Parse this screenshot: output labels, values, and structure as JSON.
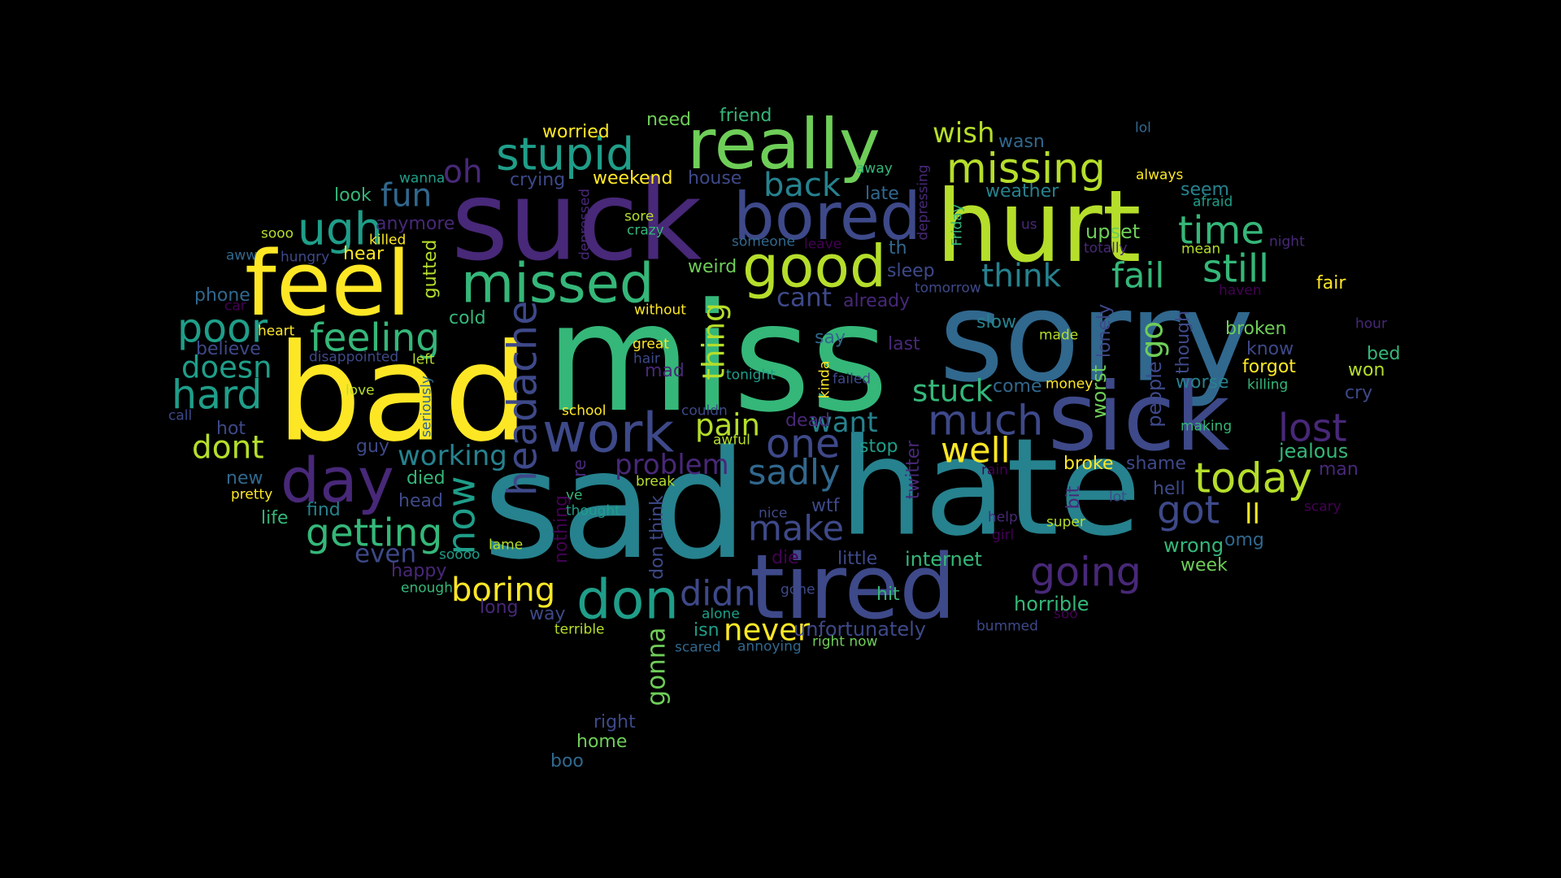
{
  "background": "#000000",
  "palette": {
    "yellow": "#fde725",
    "lime": "#b5de2b",
    "green": "#6ece58",
    "seagreen": "#35b779",
    "teal": "#1f9e89",
    "cyan": "#26828e",
    "blue": "#31688e",
    "indigo": "#3e4989",
    "purple": "#482878",
    "violet": "#440154"
  },
  "words": [
    "miss",
    "sad",
    "hate",
    "sorry",
    "bad",
    "suck",
    "hurt",
    "sick",
    "tired",
    "feel",
    "really",
    "bored",
    "day",
    "work",
    "don",
    "missed",
    "stupid",
    "good",
    "missing",
    "headache",
    "going",
    "one",
    "much",
    "today",
    "now",
    "got",
    "lost",
    "ugh",
    "poor",
    "hard",
    "feeling",
    "getting",
    "boring",
    "didn",
    "never",
    "make",
    "well",
    "still",
    "time",
    "fail",
    "think",
    "sadly",
    "problem",
    "pain",
    "stuck",
    "back",
    "thing",
    "fun",
    "oh",
    "doesn",
    "dont",
    "working",
    "even",
    "wish",
    "cant",
    "want",
    "go",
    "gonna",
    "ll",
    "wrong",
    "jealous",
    "upset",
    "horrible",
    "unfortunately",
    "internet",
    "broke",
    "shame",
    "worst",
    "people",
    "lonely",
    "weekend",
    "crying",
    "house",
    "weird",
    "sleep",
    "forgot",
    "broken",
    "know",
    "worse",
    "cry",
    "bed",
    "won",
    "fair",
    "seem",
    "weather",
    "friend",
    "need",
    "worried",
    "look",
    "anymore",
    "hear",
    "gutted",
    "phone",
    "believe",
    "hot",
    "guy",
    "new",
    "life",
    "find",
    "died",
    "head",
    "cold",
    "without",
    "already",
    "late",
    "th",
    "Friday",
    "depressing",
    "depressed",
    "sore",
    "crazy",
    "slow",
    "come",
    "say",
    "last",
    "stop",
    "twitter",
    "bit",
    "hell",
    "week",
    "omg",
    "man",
    "hour",
    "night",
    "killing",
    "made",
    "money",
    "making",
    "lol",
    "away",
    "wasn",
    "always",
    "afraid",
    "wanna",
    "killed",
    "sooo",
    "aww",
    "hungry",
    "car",
    "heart",
    "disappointed",
    "left",
    "love",
    "call",
    "seriously",
    "great",
    "hair",
    "mad",
    "tonight",
    "failed",
    "kinda",
    "couldn",
    "school",
    "awful",
    "dead",
    "break",
    "ve",
    "re",
    "nothing",
    "thought",
    "nice",
    "wtf",
    "die",
    "little",
    "lot",
    "help",
    "girl",
    "super",
    "scary",
    "pretty",
    "happy",
    "soooo",
    "lame",
    "enough",
    "long",
    "way",
    "terrible",
    "isn",
    "scared",
    "annoying",
    "gone",
    "alone",
    "bummed",
    "soo",
    "right now",
    "right",
    "home",
    "boo",
    "mean",
    "totally",
    "us",
    "leave",
    "someone",
    "tomorrow",
    "rain",
    "haven",
    "though",
    "don think",
    "hit"
  ]
}
